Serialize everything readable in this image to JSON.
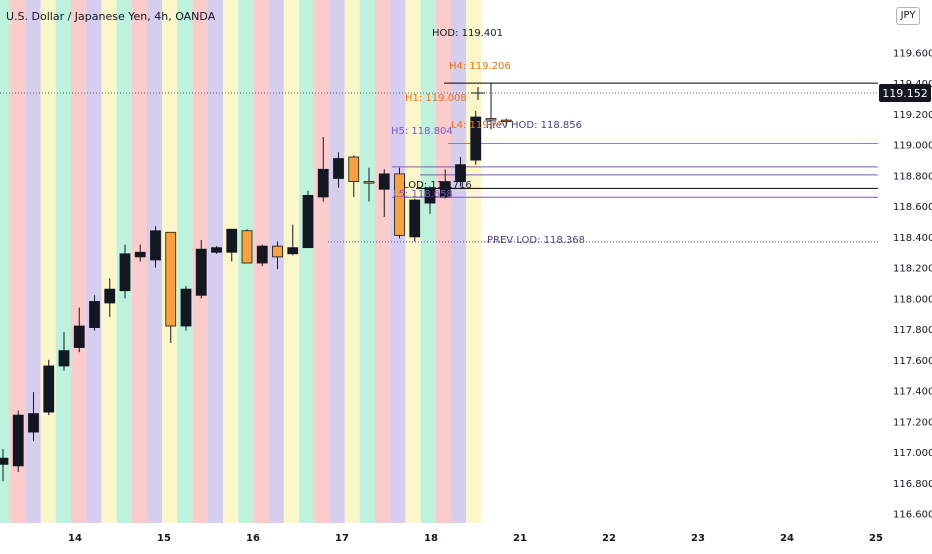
{
  "header": {
    "title": "U.S. Dollar / Japanese Yen, 4h, OANDA",
    "currency_label": "JPY"
  },
  "colors": {
    "bull": "#131722",
    "bear": "#f7a23c",
    "wick": "#131722",
    "hod": "#000000",
    "prev_hod": "#7e57c2",
    "h1": "#ff6d00",
    "prev_lod": "#5d4a8a",
    "label_hod": "#131722",
    "label_h4": "#ff6d00",
    "label_h1": "#ff6d00",
    "label_h5": "#7e57c2",
    "label_l4": "#ff6d00",
    "label_prev_hod": "#4a3f85",
    "label_lod": "#131722",
    "label_l5": "#7e57c2",
    "label_prev_lod": "#4a3f85",
    "band_colors": [
      "#b2f0d6",
      "#fbc2c2",
      "#cfc5ec",
      "#fbf4c2"
    ],
    "price_badge": "#131722"
  },
  "chart_data": {
    "type": "candlestick",
    "symbol": "USDJPY",
    "interval": "4h",
    "ylim": [
      116.6,
      119.6
    ],
    "y_ticks": [
      "116.600",
      "116.800",
      "117.000",
      "117.200",
      "117.400",
      "117.600",
      "117.800",
      "118.000",
      "118.200",
      "118.400",
      "118.600",
      "118.800",
      "119.000",
      "119.200",
      "119.400",
      "119.600"
    ],
    "x_ticks": [
      "14",
      "15",
      "16",
      "17",
      "18",
      "21",
      "22",
      "23",
      "24",
      "25"
    ],
    "grid": false,
    "candles": [
      {
        "o": 116.92,
        "h": 117.02,
        "l": 116.81,
        "c": 116.96
      },
      {
        "o": 116.91,
        "h": 117.27,
        "l": 116.87,
        "c": 117.24
      },
      {
        "o": 117.13,
        "h": 117.39,
        "l": 117.07,
        "c": 117.25
      },
      {
        "o": 117.26,
        "h": 117.6,
        "l": 117.24,
        "c": 117.56
      },
      {
        "o": 117.56,
        "h": 117.78,
        "l": 117.53,
        "c": 117.66
      },
      {
        "o": 117.68,
        "h": 117.94,
        "l": 117.65,
        "c": 117.82
      },
      {
        "o": 117.81,
        "h": 118.02,
        "l": 117.79,
        "c": 117.98
      },
      {
        "o": 117.97,
        "h": 118.13,
        "l": 117.88,
        "c": 118.06
      },
      {
        "o": 118.05,
        "h": 118.35,
        "l": 118.0,
        "c": 118.29
      },
      {
        "o": 118.27,
        "h": 118.35,
        "l": 118.24,
        "c": 118.3
      },
      {
        "o": 118.25,
        "h": 118.47,
        "l": 118.2,
        "c": 118.44
      },
      {
        "o": 118.43,
        "h": 118.43,
        "l": 117.71,
        "c": 117.82
      },
      {
        "o": 117.82,
        "h": 118.08,
        "l": 117.79,
        "c": 118.06
      },
      {
        "o": 118.02,
        "h": 118.38,
        "l": 118.0,
        "c": 118.32
      },
      {
        "o": 118.3,
        "h": 118.34,
        "l": 118.29,
        "c": 118.33
      },
      {
        "o": 118.3,
        "h": 118.45,
        "l": 118.24,
        "c": 118.45
      },
      {
        "o": 118.44,
        "h": 118.45,
        "l": 118.23,
        "c": 118.23
      },
      {
        "o": 118.23,
        "h": 118.35,
        "l": 118.21,
        "c": 118.34
      },
      {
        "o": 118.34,
        "h": 118.37,
        "l": 118.19,
        "c": 118.27
      },
      {
        "o": 118.29,
        "h": 118.48,
        "l": 118.28,
        "c": 118.33
      },
      {
        "o": 118.33,
        "h": 118.7,
        "l": 118.33,
        "c": 118.67
      },
      {
        "o": 118.66,
        "h": 119.05,
        "l": 118.63,
        "c": 118.84
      },
      {
        "o": 118.78,
        "h": 118.95,
        "l": 118.72,
        "c": 118.91
      },
      {
        "o": 118.92,
        "h": 118.93,
        "l": 118.66,
        "c": 118.76
      },
      {
        "o": 118.76,
        "h": 118.85,
        "l": 118.63,
        "c": 118.75
      },
      {
        "o": 118.71,
        "h": 118.84,
        "l": 118.53,
        "c": 118.81
      },
      {
        "o": 118.81,
        "h": 118.85,
        "l": 118.39,
        "c": 118.41
      },
      {
        "o": 118.4,
        "h": 118.65,
        "l": 118.37,
        "c": 118.64
      },
      {
        "o": 118.62,
        "h": 118.73,
        "l": 118.55,
        "c": 118.72
      },
      {
        "o": 118.66,
        "h": 118.84,
        "l": 118.65,
        "c": 118.76
      },
      {
        "o": 118.76,
        "h": 118.92,
        "l": 118.73,
        "c": 118.87
      },
      {
        "o": 118.9,
        "h": 119.22,
        "l": 118.87,
        "c": 119.18
      },
      {
        "o": 119.17,
        "h": 119.4,
        "l": 119.1,
        "c": 119.16
      },
      {
        "o": 119.16,
        "h": 119.17,
        "l": 119.12,
        "c": 119.15
      }
    ],
    "levels": [
      {
        "name": "HOD",
        "value": 119.401,
        "label": "HOD: 119.401",
        "color_key": "hod",
        "style": "solid"
      },
      {
        "name": "H1",
        "value": 119.008,
        "label": "H1: 119.008",
        "color_key": "h1",
        "style": "solid"
      },
      {
        "name": "PREV HOD",
        "value": 118.856,
        "label": "Prev HOD: 118.856",
        "color_key": "prev_hod",
        "style": "solid"
      },
      {
        "name": "H5",
        "value": 118.804,
        "label": "H5: 118.804",
        "color_key": "prev_hod",
        "style": "solid"
      },
      {
        "name": "LOD",
        "value": 118.716,
        "label": "LOD: 118.716",
        "color_key": "hod",
        "style": "solid"
      },
      {
        "name": "L5",
        "value": 118.658,
        "label": "L5: 118.658",
        "color_key": "prev_hod",
        "style": "solid"
      },
      {
        "name": "PREV LOD",
        "value": 118.368,
        "label": "PREV LOD: 118.368",
        "color_key": "prev_lod",
        "style": "dotted"
      }
    ],
    "annotations": [
      {
        "text": "H4: 119.206",
        "value": 119.206,
        "color_key": "label_h4"
      },
      {
        "text": "L4: 119.??",
        "value": 118.98,
        "color_key": "label_l4"
      }
    ],
    "last_price": "119.152"
  }
}
